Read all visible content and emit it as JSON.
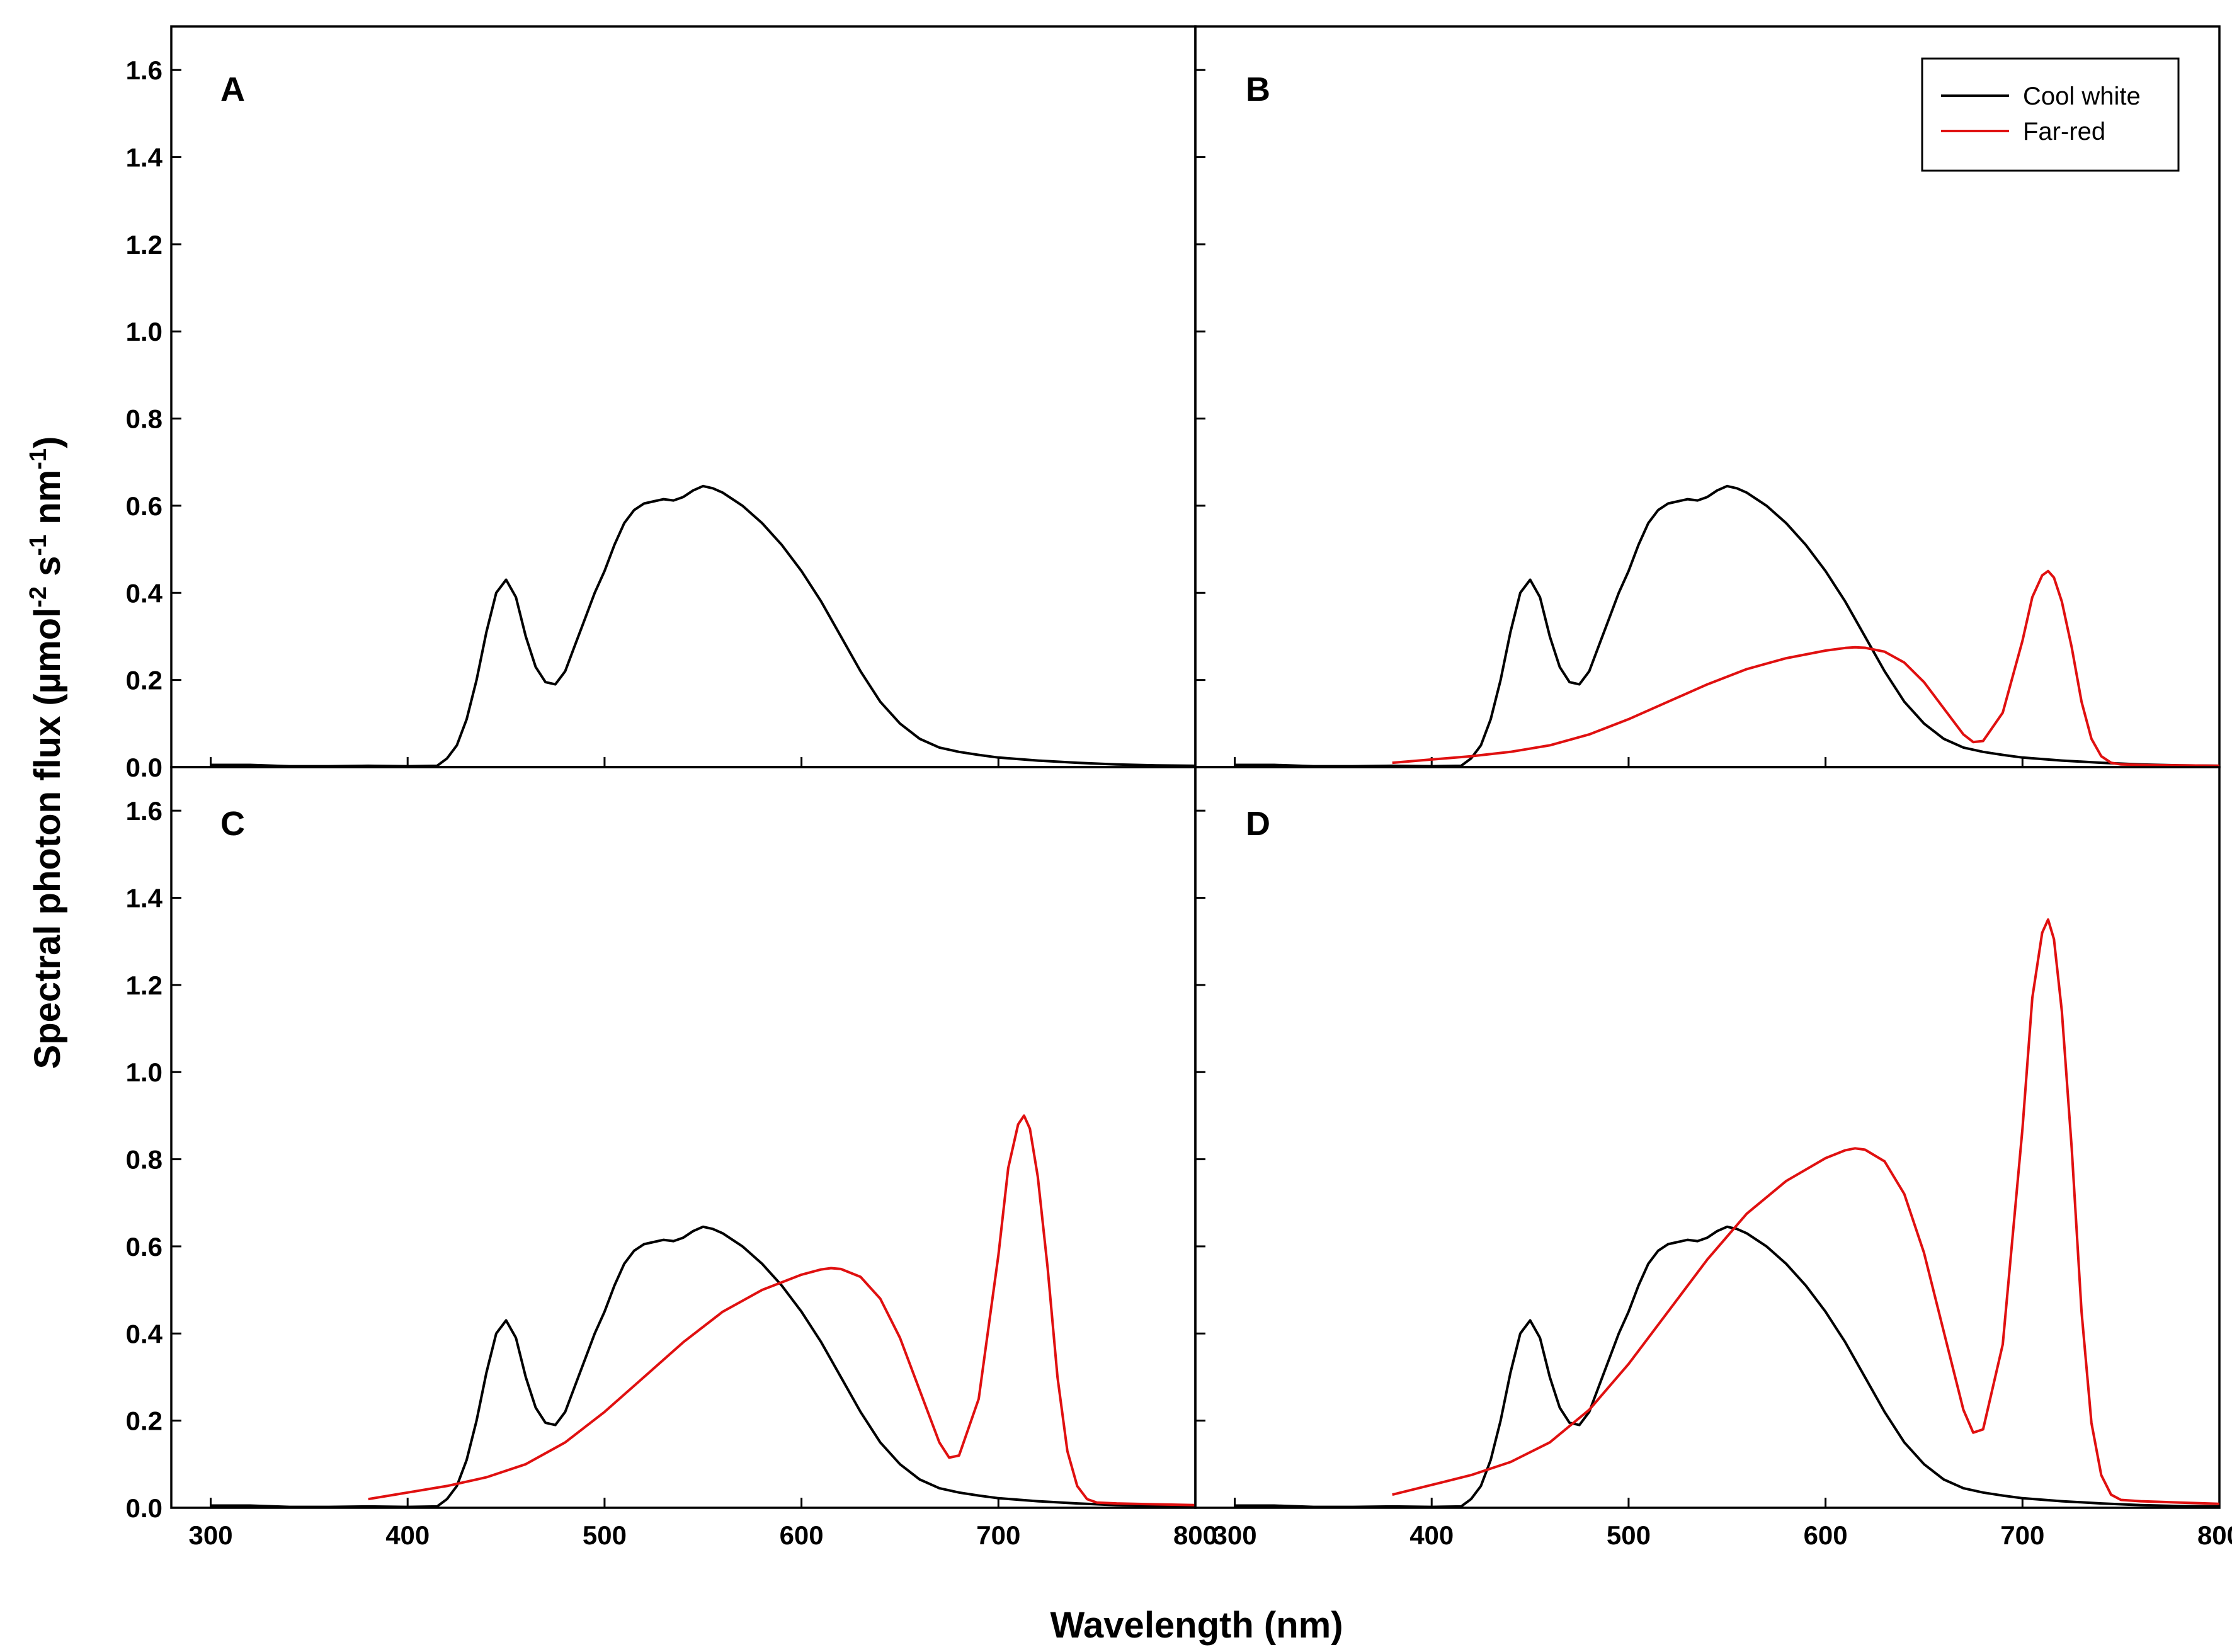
{
  "chart_data": {
    "type": "line",
    "ylabel_parts": {
      "t1": "Spectral photon flux (µmol",
      "s1": "-2",
      "t2": " s",
      "s2": "-1",
      "t3": " nm",
      "s3": "-1",
      "t4": ")"
    },
    "xlabel": "Wavelength (nm)",
    "xlim": [
      280,
      800
    ],
    "ylim": [
      0,
      1.7
    ],
    "x_ticks": [
      "300",
      "400",
      "500",
      "600",
      "700",
      "800"
    ],
    "y_ticks": [
      "0.0",
      "0.2",
      "0.4",
      "0.6",
      "0.8",
      "1.0",
      "1.2",
      "1.4",
      "1.6"
    ],
    "colors": {
      "cool_white": "#000000",
      "far_red": "#e01010"
    },
    "legend": {
      "position": "top-right",
      "entries": [
        "Cool white",
        "Far-red"
      ]
    },
    "cool_white": {
      "x": [
        300,
        320,
        340,
        360,
        380,
        400,
        415,
        420,
        425,
        430,
        435,
        440,
        445,
        450,
        455,
        460,
        465,
        470,
        475,
        480,
        485,
        490,
        495,
        500,
        505,
        510,
        515,
        520,
        525,
        530,
        535,
        540,
        545,
        550,
        555,
        560,
        570,
        580,
        590,
        600,
        610,
        620,
        630,
        640,
        650,
        660,
        670,
        680,
        690,
        700,
        720,
        740,
        760,
        780,
        800
      ],
      "y": [
        0.005,
        0.005,
        0.002,
        0.002,
        0.003,
        0.002,
        0.003,
        0.02,
        0.05,
        0.11,
        0.2,
        0.31,
        0.4,
        0.43,
        0.39,
        0.3,
        0.23,
        0.195,
        0.19,
        0.22,
        0.28,
        0.34,
        0.4,
        0.45,
        0.51,
        0.56,
        0.59,
        0.605,
        0.61,
        0.615,
        0.612,
        0.62,
        0.635,
        0.645,
        0.64,
        0.63,
        0.6,
        0.56,
        0.51,
        0.45,
        0.38,
        0.3,
        0.22,
        0.15,
        0.1,
        0.065,
        0.045,
        0.035,
        0.028,
        0.022,
        0.015,
        0.01,
        0.006,
        0.004,
        0.003
      ]
    },
    "far_red_shape": {
      "x": [
        380,
        400,
        420,
        440,
        460,
        480,
        500,
        520,
        540,
        560,
        580,
        600,
        610,
        615,
        620,
        630,
        640,
        650,
        660,
        670,
        675,
        680,
        690,
        700,
        705,
        710,
        713,
        716,
        720,
        725,
        730,
        735,
        740,
        745,
        750,
        760,
        780,
        800
      ],
      "y": [
        0.02,
        0.035,
        0.05,
        0.07,
        0.1,
        0.15,
        0.22,
        0.3,
        0.38,
        0.45,
        0.5,
        0.535,
        0.547,
        0.55,
        0.548,
        0.53,
        0.48,
        0.39,
        0.27,
        0.15,
        0.115,
        0.12,
        0.25,
        0.58,
        0.78,
        0.88,
        0.9,
        0.87,
        0.76,
        0.55,
        0.3,
        0.13,
        0.05,
        0.02,
        0.012,
        0.01,
        0.008,
        0.006
      ]
    },
    "panels": [
      {
        "label": "A",
        "far_red_scale": 0
      },
      {
        "label": "B",
        "far_red_scale": 0.5
      },
      {
        "label": "C",
        "far_red_scale": 1.0
      },
      {
        "label": "D",
        "far_red_scale": 1.5
      }
    ]
  }
}
